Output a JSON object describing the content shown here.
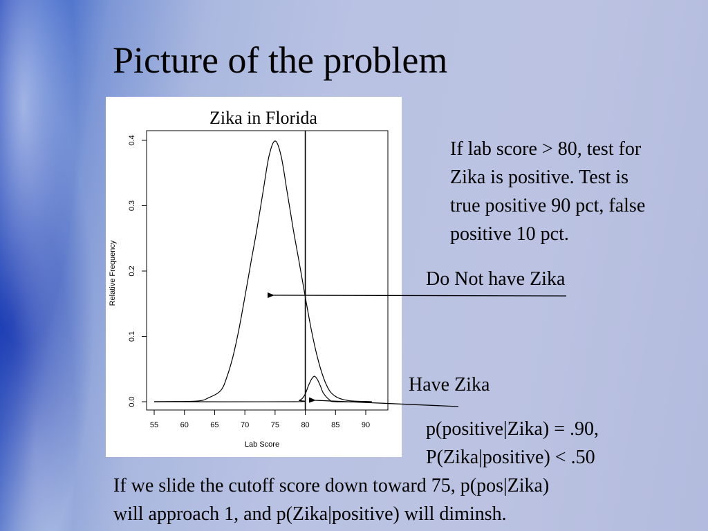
{
  "slide": {
    "title": "Picture of the problem",
    "info_lines": [
      "If lab score > 80, test for",
      "Zika is positive.  Test is",
      "true positive 90 pct, false",
      "positive 10 pct."
    ],
    "label_no_zika": "Do Not have Zika",
    "label_have_zika": "Have Zika",
    "prob_lines": [
      "p(positive|Zika) = .90,",
      "P(Zika|positive) < .50"
    ],
    "bottom_lines": [
      "If we slide the cutoff score down toward 75, p(pos|Zika)",
      "will approach 1, and p(Zika|positive) will diminsh."
    ]
  },
  "chart_data": {
    "type": "line",
    "title": "Zika in Florida",
    "xlabel": "Lab Score",
    "ylabel": "Relative Frequency",
    "xlim": [
      55,
      91
    ],
    "ylim": [
      0,
      0.4
    ],
    "xticks": [
      55,
      60,
      65,
      70,
      75,
      80,
      85,
      90
    ],
    "yticks": [
      0.0,
      0.1,
      0.2,
      0.3,
      0.4
    ],
    "ytick_labels": [
      "0.0",
      "0.1",
      "0.2",
      "0.3",
      "0.4"
    ],
    "cutoff": 80,
    "series": [
      {
        "x": [
          55,
          62,
          64,
          66,
          67,
          68,
          69,
          70,
          71,
          72,
          73,
          74,
          75,
          76,
          77,
          78,
          79,
          80,
          81,
          82,
          83,
          84,
          85,
          86,
          87,
          88,
          91
        ],
        "y": [
          0.0,
          0.001,
          0.006,
          0.017,
          0.037,
          0.068,
          0.11,
          0.16,
          0.213,
          0.264,
          0.321,
          0.376,
          0.399,
          0.376,
          0.321,
          0.264,
          0.213,
          0.16,
          0.11,
          0.068,
          0.037,
          0.017,
          0.008,
          0.004,
          0.002,
          0.001,
          0.0
        ]
      },
      {
        "x": [
          55,
          78,
          79,
          79.5,
          80,
          80.5,
          81,
          81.5,
          82,
          82.5,
          83,
          84,
          85,
          91
        ],
        "y": [
          0.0,
          0.0,
          0.002,
          0.005,
          0.012,
          0.024,
          0.034,
          0.039,
          0.034,
          0.024,
          0.013,
          0.003,
          0.0,
          0.0
        ]
      }
    ]
  }
}
